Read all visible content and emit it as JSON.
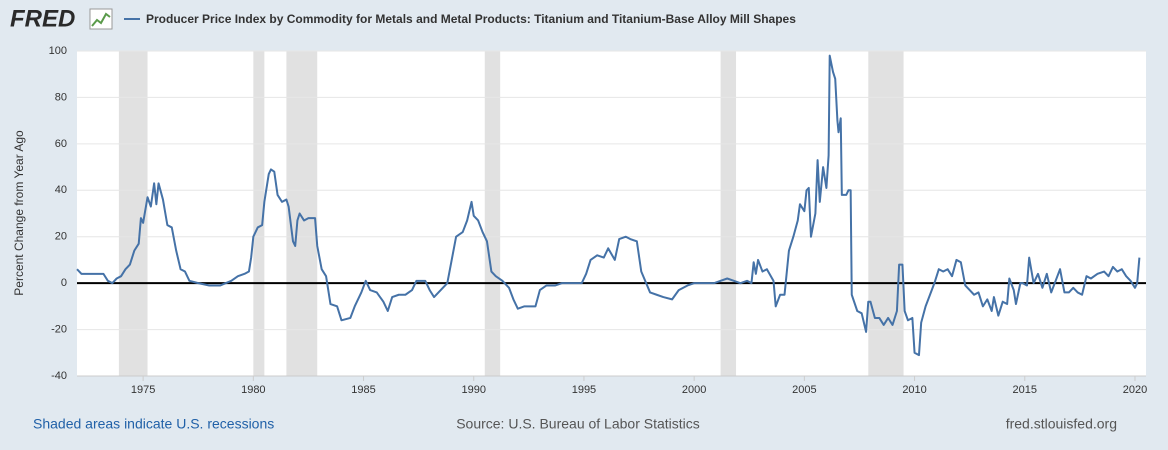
{
  "chart_data": {
    "type": "line",
    "logo": "FRED",
    "ylabel": "Percent Change from Year Ago",
    "notes": {
      "recessions": "Shaded areas indicate U.S. recessions",
      "source": "Source: U.S. Bureau of Labor Statistics",
      "site": "fred.stlouisfed.org"
    },
    "xlim": [
      1972,
      2020.5
    ],
    "ylim": [
      -40,
      100
    ],
    "xticks": [
      1975,
      1980,
      1985,
      1990,
      1995,
      2000,
      2005,
      2010,
      2015,
      2020
    ],
    "yticks": [
      -40,
      -20,
      0,
      20,
      40,
      60,
      80,
      100
    ],
    "grid": true,
    "zero_line": true,
    "recessions": [
      [
        1973.9,
        1975.2
      ],
      [
        1980.0,
        1980.5
      ],
      [
        1981.5,
        1982.9
      ],
      [
        1990.5,
        1991.2
      ],
      [
        2001.2,
        2001.9
      ],
      [
        2007.9,
        2009.5
      ]
    ],
    "recession_color": "#e1e1e1",
    "x": [
      1972.0,
      1972.2,
      1972.5,
      1973.0,
      1973.2,
      1973.4,
      1973.6,
      1973.8,
      1974.0,
      1974.2,
      1974.4,
      1974.6,
      1974.8,
      1974.9,
      1975.0,
      1975.2,
      1975.35,
      1975.5,
      1975.6,
      1975.7,
      1975.9,
      1976.1,
      1976.3,
      1976.5,
      1976.7,
      1976.9,
      1977.1,
      1977.5,
      1978.0,
      1978.5,
      1979.0,
      1979.3,
      1979.6,
      1979.8,
      1979.9,
      1980.0,
      1980.2,
      1980.4,
      1980.5,
      1980.7,
      1980.8,
      1980.95,
      1981.1,
      1981.3,
      1981.5,
      1981.6,
      1981.8,
      1981.9,
      1982.0,
      1982.1,
      1982.3,
      1982.5,
      1982.8,
      1982.9,
      1983.1,
      1983.3,
      1983.5,
      1983.8,
      1984.0,
      1984.4,
      1984.6,
      1984.9,
      1985.1,
      1985.3,
      1985.6,
      1985.9,
      1986.1,
      1986.3,
      1986.6,
      1986.9,
      1987.2,
      1987.4,
      1987.8,
      1988.0,
      1988.2,
      1988.4,
      1988.6,
      1988.8,
      1989.0,
      1989.2,
      1989.5,
      1989.7,
      1989.9,
      1990.0,
      1990.2,
      1990.4,
      1990.6,
      1990.8,
      1991.0,
      1991.3,
      1991.6,
      1991.8,
      1992.0,
      1992.3,
      1992.8,
      1993.0,
      1993.3,
      1993.7,
      1994.0,
      1994.5,
      1994.9,
      1995.1,
      1995.3,
      1995.6,
      1995.9,
      1996.1,
      1996.4,
      1996.6,
      1996.9,
      1997.1,
      1997.4,
      1997.6,
      1998.0,
      1998.3,
      1998.6,
      1999.0,
      1999.3,
      1999.7,
      2000.0,
      2000.3,
      2000.6,
      2000.9,
      2001.2,
      2001.5,
      2001.8,
      2002.1,
      2002.4,
      2002.6,
      2002.7,
      2002.8,
      2002.9,
      2003.1,
      2003.3,
      2003.6,
      2003.7,
      2003.9,
      2004.1,
      2004.3,
      2004.5,
      2004.7,
      2004.8,
      2005.0,
      2005.1,
      2005.2,
      2005.3,
      2005.5,
      2005.6,
      2005.7,
      2005.85,
      2006.0,
      2006.1,
      2006.15,
      2006.3,
      2006.4,
      2006.5,
      2006.55,
      2006.65,
      2006.7,
      2006.9,
      2007.0,
      2007.1,
      2007.15,
      2007.4,
      2007.6,
      2007.8,
      2007.9,
      2008.0,
      2008.2,
      2008.4,
      2008.6,
      2008.8,
      2009.0,
      2009.2,
      2009.3,
      2009.45,
      2009.55,
      2009.7,
      2009.9,
      2010.0,
      2010.2,
      2010.3,
      2010.5,
      2010.7,
      2010.9,
      2011.1,
      2011.3,
      2011.5,
      2011.7,
      2011.9,
      2012.1,
      2012.3,
      2012.5,
      2012.7,
      2012.9,
      2013.1,
      2013.3,
      2013.5,
      2013.6,
      2013.8,
      2014.0,
      2014.2,
      2014.3,
      2014.5,
      2014.6,
      2014.8,
      2014.9,
      2015.1,
      2015.2,
      2015.4,
      2015.6,
      2015.8,
      2016.0,
      2016.2,
      2016.4,
      2016.6,
      2016.8,
      2017.0,
      2017.2,
      2017.4,
      2017.6,
      2017.8,
      2018.0,
      2018.3,
      2018.6,
      2018.8,
      2019.0,
      2019.2,
      2019.4,
      2019.6,
      2019.8,
      2020.0,
      2020.1,
      2020.2
    ],
    "series": [
      {
        "name": "Producer Price Index by Commodity for Metals and Metal Products: Titanium and Titanium-Base Alloy Mill Shapes",
        "color": "#4572a7",
        "values": [
          6,
          4,
          4,
          4,
          4,
          1,
          0,
          2,
          3,
          6,
          8,
          14,
          17,
          28,
          26,
          37,
          33,
          43,
          34,
          43,
          36,
          25,
          24,
          14,
          6,
          5,
          1,
          0,
          -1,
          -1,
          1,
          3,
          4,
          5,
          11,
          20,
          24,
          25,
          35,
          47,
          49,
          48,
          38,
          35,
          36,
          33,
          18,
          16,
          27,
          30,
          27,
          28,
          28,
          16,
          6,
          3,
          -9,
          -10,
          -16,
          -15,
          -10,
          -4,
          1,
          -3,
          -4,
          -8,
          -12,
          -6,
          -5,
          -5,
          -3,
          1,
          1,
          -3,
          -6,
          -4,
          -2,
          0,
          10,
          20,
          22,
          27,
          35,
          29,
          27,
          22,
          18,
          5,
          3,
          1,
          -2,
          -7,
          -11,
          -10,
          -10,
          -3,
          -1,
          -1,
          0,
          0,
          0,
          4,
          10,
          12,
          11,
          15,
          10,
          19,
          20,
          19,
          18,
          5,
          -4,
          -5,
          -6,
          -7,
          -3,
          -1,
          0,
          0,
          0,
          0,
          1,
          2,
          1,
          0,
          1,
          0,
          9,
          4,
          10,
          5,
          6,
          1,
          -10,
          -5,
          -5,
          14,
          20,
          27,
          34,
          31,
          40,
          41,
          20,
          30,
          53,
          35,
          50,
          41,
          55,
          98,
          91,
          88,
          70,
          65,
          71,
          38,
          38,
          40,
          40,
          -5,
          -12,
          -13,
          -21,
          -8,
          -8,
          -15,
          -15,
          -18,
          -15,
          -18,
          -12,
          8,
          8,
          -12,
          -16,
          -15,
          -30,
          -31,
          -17,
          -10,
          -5,
          0,
          6,
          5,
          6,
          3,
          10,
          9,
          -1,
          -3,
          -5,
          -4,
          -10,
          -7,
          -12,
          -6,
          -14,
          -8,
          -9,
          2,
          -3,
          -9,
          0,
          0,
          -1,
          11,
          0,
          4,
          -2,
          4,
          -4,
          1,
          6,
          -4,
          -4,
          -2,
          -4,
          -5,
          3,
          2,
          4,
          5,
          3,
          7,
          5,
          6,
          3,
          1,
          -2,
          0,
          11
        ]
      }
    ]
  }
}
